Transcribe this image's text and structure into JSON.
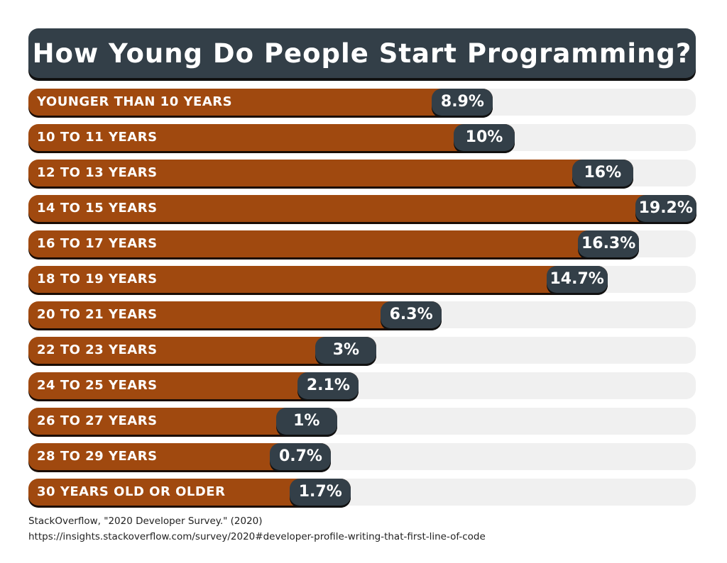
{
  "chart_data": {
    "type": "bar",
    "orientation": "horizontal",
    "title": "How Young Do People Start Programming?",
    "categories": [
      "YOUNGER THAN 10 YEARS",
      "10 TO 11 YEARS",
      "12 TO 13 YEARS",
      "14 TO 15 YEARS",
      "16 TO 17 YEARS",
      "18 TO 19 YEARS",
      "20 TO 21 YEARS",
      "22 TO 23 YEARS",
      "24 TO 25 YEARS",
      "26 TO 27 YEARS",
      "28 TO 29 YEARS",
      "30 YEARS OLD OR OLDER"
    ],
    "values": [
      8.9,
      10,
      16,
      19.2,
      16.3,
      14.7,
      6.3,
      3,
      2.1,
      1,
      0.7,
      1.7
    ],
    "data_labels": [
      "8.9%",
      "10%",
      "16%",
      "19.2%",
      "16.3%",
      "14.7%",
      "6.3%",
      "3%",
      "2.1%",
      "1%",
      "0.7%",
      "1.7%"
    ],
    "unit": "%",
    "colors": {
      "bar": "#a0490f",
      "pill": "#333f48",
      "track": "#f0f0f0",
      "title_bg": "#333f48"
    }
  },
  "source": {
    "citation": "StackOverflow, \"2020 Developer Survey.\" (2020)",
    "url": "https://insights.stackoverflow.com/survey/2020#developer-profile-writing-that-first-line-of-code"
  }
}
